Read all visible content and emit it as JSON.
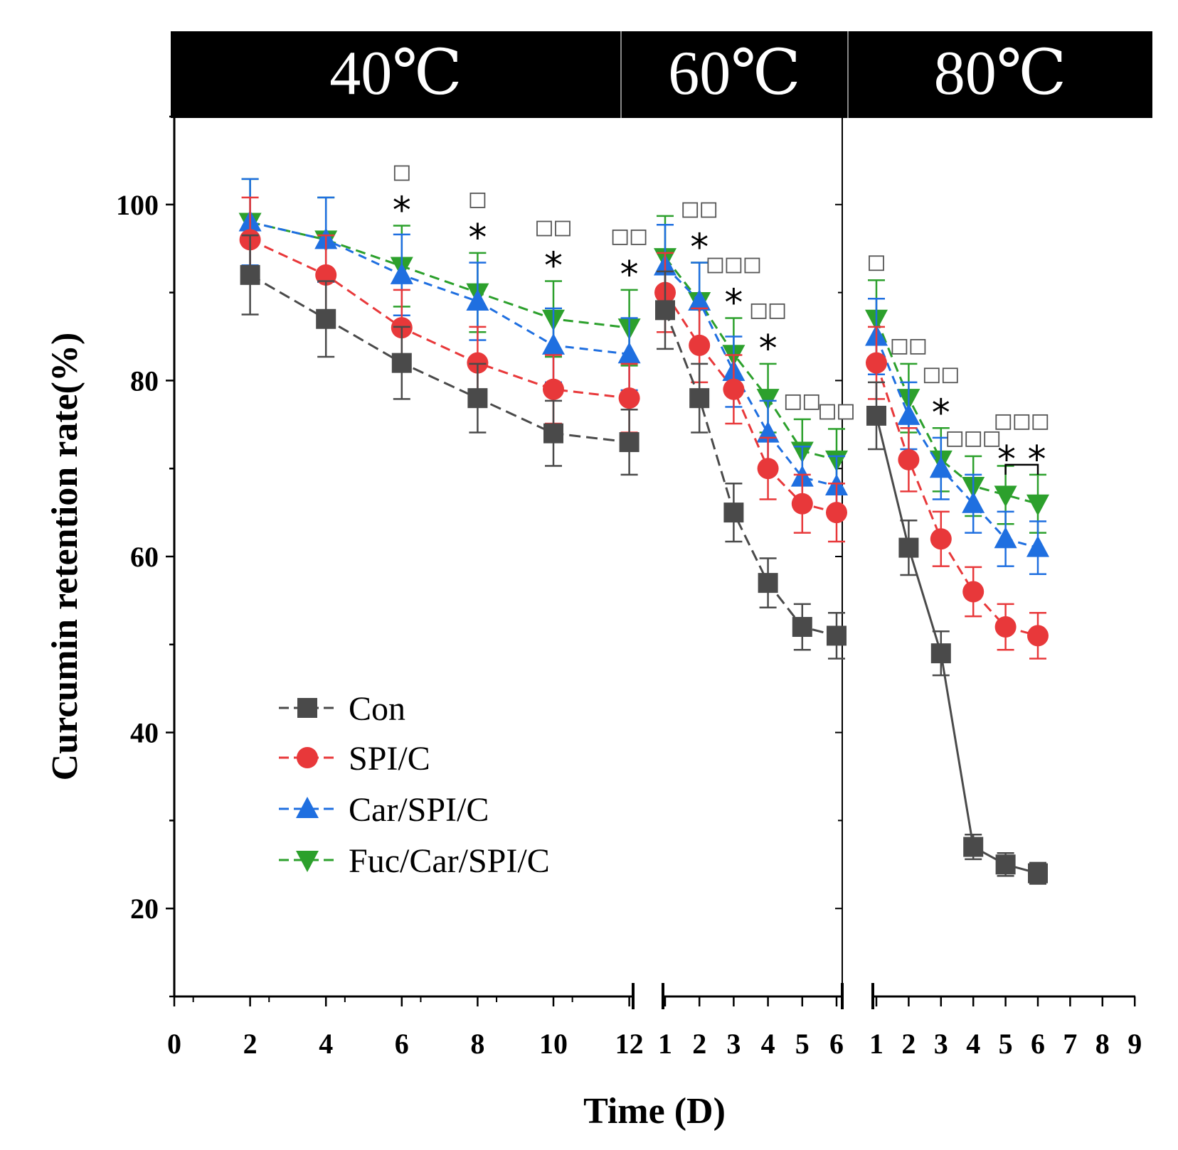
{
  "chart_data": {
    "type": "line",
    "ylabel": "Curcumin retention rate(%)",
    "xlabel": "Time (D)",
    "ylim": [
      10,
      110
    ],
    "yticks": [
      20,
      40,
      60,
      80,
      100
    ],
    "legend_position": "lower-left",
    "panels": [
      {
        "title": "40℃",
        "x": [
          2,
          4,
          6,
          8,
          10,
          12
        ],
        "ticks": [
          "0",
          "2",
          "4",
          "6",
          "8",
          "10",
          "12"
        ],
        "series": [
          {
            "name": "Con",
            "values": [
              92,
              87,
              82,
              78,
              74,
              73
            ],
            "errors": [
              4.5,
              4.3,
              4.1,
              3.9,
              3.7,
              3.7
            ]
          },
          {
            "name": "SPI/C",
            "values": [
              96,
              92,
              86,
              82,
              79,
              78
            ],
            "errors": [
              4.8,
              4.5,
              4.3,
              4.1,
              3.9,
              3.9
            ]
          },
          {
            "name": "Car/SPI/C",
            "values": [
              98,
              96,
              92,
              89,
              84,
              83
            ],
            "errors": [
              4.9,
              4.8,
              4.6,
              4.4,
              4.2,
              4.1
            ]
          },
          {
            "name": "Fuc/Car/SPI/C",
            "values": [
              98,
              96,
              93,
              90,
              87,
              86
            ],
            "errors": [
              4.9,
              4.8,
              4.6,
              4.5,
              4.3,
              4.3
            ]
          }
        ],
        "annotations": [
          {
            "x": 6,
            "squares": 1,
            "star": "*"
          },
          {
            "x": 8,
            "squares": 1,
            "star": "*"
          },
          {
            "x": 10,
            "squares": 2,
            "star": "*"
          },
          {
            "x": 12,
            "squares": 2,
            "star": "*"
          }
        ]
      },
      {
        "title": "60℃",
        "x": [
          1,
          2,
          3,
          4,
          5,
          6
        ],
        "ticks": [
          "1",
          "2",
          "3",
          "4",
          "5",
          "6"
        ],
        "series": [
          {
            "name": "Con",
            "values": [
              88,
              78,
              65,
              57,
              52,
              51
            ],
            "errors": [
              4.4,
              3.9,
              3.3,
              2.8,
              2.6,
              2.6
            ]
          },
          {
            "name": "SPI/C",
            "values": [
              90,
              84,
              79,
              70,
              66,
              65
            ],
            "errors": [
              4.5,
              4.2,
              3.9,
              3.5,
              3.3,
              3.3
            ]
          },
          {
            "name": "Car/SPI/C",
            "values": [
              93,
              89,
              81,
              74,
              69,
              68
            ],
            "errors": [
              4.7,
              4.4,
              4.0,
              3.7,
              3.5,
              3.4
            ]
          },
          {
            "name": "Fuc/Car/SPI/C",
            "values": [
              94,
              89,
              83,
              78,
              72,
              71
            ],
            "errors": [
              4.7,
              4.4,
              4.1,
              3.9,
              3.6,
              3.5
            ]
          }
        ],
        "annotations": [
          {
            "x": 2,
            "squares": 2,
            "star": "*"
          },
          {
            "x": 3,
            "squares": 3,
            "star": "*"
          },
          {
            "x": 4,
            "squares": 2,
            "star": "*"
          },
          {
            "x": 5,
            "squares": 2,
            "star": ""
          },
          {
            "x": 6,
            "squares": 2,
            "star": ""
          }
        ]
      },
      {
        "title": "80℃",
        "x": [
          1,
          2,
          3,
          4,
          5,
          6
        ],
        "ticks": [
          "1",
          "2",
          "3",
          "4",
          "5",
          "6",
          "7",
          "8",
          "9"
        ],
        "series": [
          {
            "name": "Con",
            "values": [
              76,
              61,
              49,
              27,
              25,
              24
            ],
            "errors": [
              3.8,
              3.1,
              2.5,
              1.4,
              1.3,
              1.2
            ]
          },
          {
            "name": "SPI/C",
            "values": [
              82,
              71,
              62,
              56,
              52,
              51
            ],
            "errors": [
              4.1,
              3.6,
              3.1,
              2.8,
              2.6,
              2.6
            ]
          },
          {
            "name": "Car/SPI/C",
            "values": [
              85,
              76,
              70,
              66,
              62,
              61
            ],
            "errors": [
              4.3,
              3.8,
              3.5,
              3.3,
              3.1,
              3.0
            ]
          },
          {
            "name": "Fuc/Car/SPI/C",
            "values": [
              87,
              78,
              71,
              68,
              67,
              66
            ],
            "errors": [
              4.4,
              3.9,
              3.6,
              3.4,
              3.3,
              3.3
            ]
          }
        ],
        "annotations": [
          {
            "x": 1,
            "squares": 1,
            "star": ""
          },
          {
            "x": 2,
            "squares": 2,
            "star": ""
          },
          {
            "x": 3,
            "squares": 2,
            "star": "*"
          },
          {
            "x": 4,
            "squares": 3,
            "star": ""
          },
          {
            "x": 5.5,
            "squares": 3,
            "star": "* *",
            "bracket": [
              5,
              6
            ]
          }
        ]
      }
    ]
  },
  "style": {
    "colors": {
      "Con": "#4a4a4a",
      "SPI/C": "#e8383a",
      "Car/SPI/C": "#1f6fe0",
      "Fuc/Car/SPI/C": "#2ca02c"
    },
    "markers": {
      "Con": "square",
      "SPI/C": "circle",
      "Car/SPI/C": "triangle-up",
      "Fuc/Car/SPI/C": "triangle-down"
    },
    "header_bg": "#000000",
    "header_fg": "#ffffff"
  }
}
